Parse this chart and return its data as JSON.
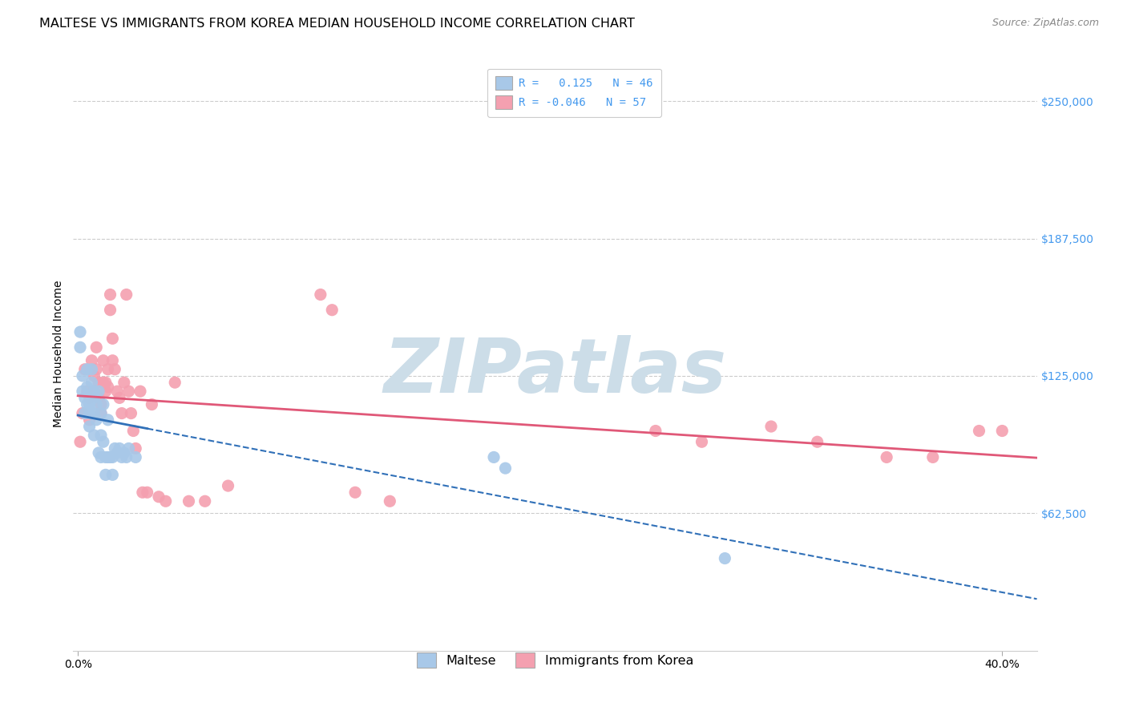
{
  "title": "MALTESE VS IMMIGRANTS FROM KOREA MEDIAN HOUSEHOLD INCOME CORRELATION CHART",
  "source": "Source: ZipAtlas.com",
  "ylabel": "Median Household Income",
  "yticks": [
    62500,
    125000,
    187500,
    250000
  ],
  "ytick_labels": [
    "$62,500",
    "$125,000",
    "$187,500",
    "$250,000"
  ],
  "ylim": [
    0,
    270000
  ],
  "xlim": [
    -0.002,
    0.415
  ],
  "blue_color": "#a8c8e8",
  "pink_color": "#f4a0b0",
  "blue_scatter_edge": "#7aaad0",
  "pink_scatter_edge": "#e87090",
  "blue_line_color": "#3070b8",
  "pink_line_color": "#e05878",
  "background_color": "#ffffff",
  "grid_color": "#cccccc",
  "legend_label_maltese": "Maltese",
  "legend_label_korea": "Immigrants from Korea",
  "legend_blue_r_val": "0.125",
  "legend_blue_n": "N = 46",
  "legend_pink_r_val": "-0.046",
  "legend_pink_n": "N = 57",
  "ytick_color": "#4499ee",
  "title_fontsize": 11.5,
  "axis_label_fontsize": 10,
  "tick_fontsize": 10,
  "watermark_text": "ZIPatlas",
  "watermark_color": "#ccdde8",
  "watermark_fontsize": 68,
  "maltese_x": [
    0.001,
    0.001,
    0.002,
    0.002,
    0.003,
    0.003,
    0.004,
    0.004,
    0.004,
    0.005,
    0.005,
    0.005,
    0.006,
    0.006,
    0.006,
    0.007,
    0.007,
    0.007,
    0.007,
    0.008,
    0.008,
    0.009,
    0.009,
    0.01,
    0.01,
    0.01,
    0.011,
    0.011,
    0.012,
    0.012,
    0.013,
    0.013,
    0.014,
    0.015,
    0.015,
    0.016,
    0.017,
    0.018,
    0.019,
    0.02,
    0.021,
    0.022,
    0.025,
    0.18,
    0.185,
    0.28
  ],
  "maltese_y": [
    145000,
    138000,
    125000,
    118000,
    115000,
    108000,
    128000,
    120000,
    112000,
    112000,
    108000,
    102000,
    128000,
    122000,
    115000,
    118000,
    115000,
    108000,
    98000,
    112000,
    105000,
    118000,
    90000,
    108000,
    98000,
    88000,
    112000,
    95000,
    88000,
    80000,
    105000,
    88000,
    88000,
    88000,
    80000,
    92000,
    90000,
    92000,
    88000,
    90000,
    88000,
    92000,
    88000,
    88000,
    83000,
    42000
  ],
  "korea_x": [
    0.001,
    0.002,
    0.003,
    0.004,
    0.005,
    0.005,
    0.006,
    0.007,
    0.007,
    0.008,
    0.008,
    0.009,
    0.009,
    0.01,
    0.01,
    0.011,
    0.011,
    0.012,
    0.012,
    0.013,
    0.013,
    0.014,
    0.014,
    0.015,
    0.015,
    0.016,
    0.017,
    0.018,
    0.019,
    0.02,
    0.021,
    0.022,
    0.023,
    0.024,
    0.025,
    0.027,
    0.028,
    0.03,
    0.032,
    0.035,
    0.038,
    0.042,
    0.048,
    0.055,
    0.065,
    0.105,
    0.11,
    0.12,
    0.135,
    0.25,
    0.27,
    0.3,
    0.32,
    0.35,
    0.37,
    0.39,
    0.4
  ],
  "korea_y": [
    95000,
    108000,
    128000,
    118000,
    115000,
    105000,
    132000,
    125000,
    118000,
    138000,
    128000,
    122000,
    115000,
    112000,
    108000,
    132000,
    122000,
    122000,
    118000,
    128000,
    120000,
    162000,
    155000,
    132000,
    142000,
    128000,
    118000,
    115000,
    108000,
    122000,
    162000,
    118000,
    108000,
    100000,
    92000,
    118000,
    72000,
    72000,
    112000,
    70000,
    68000,
    122000,
    68000,
    68000,
    75000,
    162000,
    155000,
    72000,
    68000,
    100000,
    95000,
    102000,
    95000,
    88000,
    88000,
    100000,
    100000
  ]
}
